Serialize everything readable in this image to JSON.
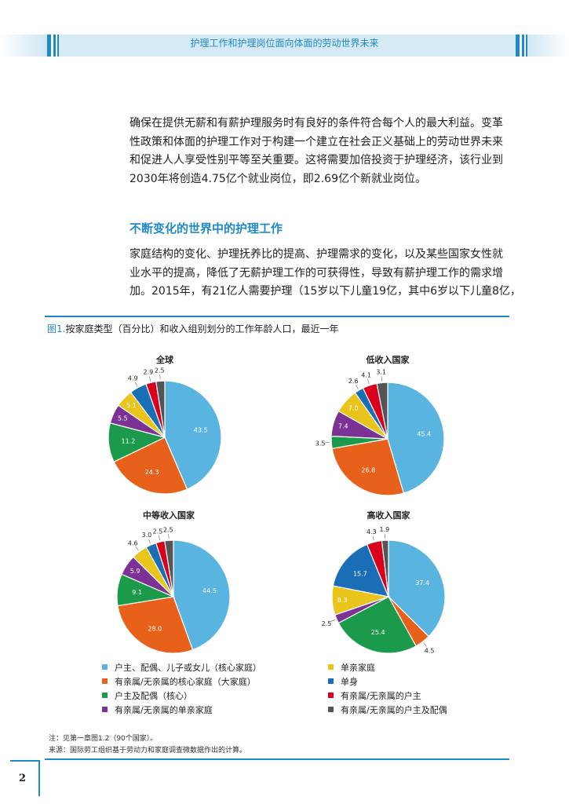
{
  "header": {
    "title": "护理工作和护理岗位面向体面的劳动世界未来"
  },
  "para1": {
    "lines": [
      "确保在提供无薪和有薪护理服务时有良好的条件符合每个人的最大利益。变革",
      "性政策和体面的护理工作对于构建一个建立在社会正义基础上的劳动世界未来",
      "和促进人人享受性别平等至关重要。这将需要加倍投资于护理经济，该行业到",
      "2030年将创造4.75亿个就业岗位，即2.69亿个新就业岗位。"
    ]
  },
  "section": {
    "title": "不断变化的世界中的护理工作"
  },
  "para2": {
    "lines": [
      "家庭结构的变化、护理抚养比的提高、护理需求的变化，以及某些国家女性就",
      "业水平的提高，降低了无薪护理工作的可获得性，导致有薪护理工作的需求增",
      "加。2015年，有21亿人需要护理（15岁以下儿童19亿，其中6岁以下儿童8亿，"
    ]
  },
  "figure": {
    "number": "图1.",
    "title": "按家庭类型（百分比）和收入组别划分的工作年龄人口，最近一年"
  },
  "colors": [
    "#5ab4e0",
    "#e8611a",
    "#1a9a4a",
    "#7b3294",
    "#e9c51b",
    "#1a6eb5",
    "#d9001b",
    "#555555"
  ],
  "chart_data": [
    {
      "type": "pie",
      "title": "全球",
      "labels": [
        "43.5",
        "24.3",
        "11.2",
        "5.5",
        "5.1",
        "4.9",
        "2.9",
        "2.5"
      ],
      "values": [
        43.5,
        24.3,
        11.2,
        5.5,
        5.1,
        4.9,
        2.9,
        2.5
      ]
    },
    {
      "type": "pie",
      "title": "低收入国家",
      "labels": [
        "45.4",
        "26.8",
        "3.5",
        "7.4",
        "7.0",
        "2.6",
        "4.1",
        "3.1"
      ],
      "values": [
        45.4,
        26.8,
        3.5,
        7.4,
        7.0,
        2.6,
        4.1,
        3.1
      ]
    },
    {
      "type": "pie",
      "title": "中等收入国家",
      "labels": [
        "44.5",
        "28.0",
        "9.1",
        "5.9",
        "4.6",
        "3.0",
        "2.5",
        "2.5"
      ],
      "values": [
        44.5,
        28.0,
        9.1,
        5.9,
        4.6,
        3.0,
        2.5,
        2.5
      ]
    },
    {
      "type": "pie",
      "title": "高收入国家",
      "labels": [
        "37.4",
        "4.5",
        "25.4",
        "2.5",
        "8.3",
        "15.7",
        "4.3",
        "1.9"
      ],
      "values": [
        37.4,
        4.5,
        25.4,
        2.5,
        8.3,
        15.7,
        4.3,
        1.9
      ]
    }
  ],
  "legend": {
    "left": [
      "户主、配偶、儿子或女儿（核心家庭）",
      "有亲属/无亲属的核心家庭（大家庭）",
      "户主及配偶（核心）",
      "有亲属/无亲属的单亲家庭"
    ],
    "right": [
      "单亲家庭",
      "单身",
      "有亲属/无亲属的户主",
      "有亲属/无亲属的户主及配偶"
    ]
  },
  "notes": {
    "note": "注：见第一章图1.2（90个国家）。",
    "source": "来源：国际劳工组织基于劳动力和家庭调查微数据作出的计算。"
  },
  "page_number": "2"
}
